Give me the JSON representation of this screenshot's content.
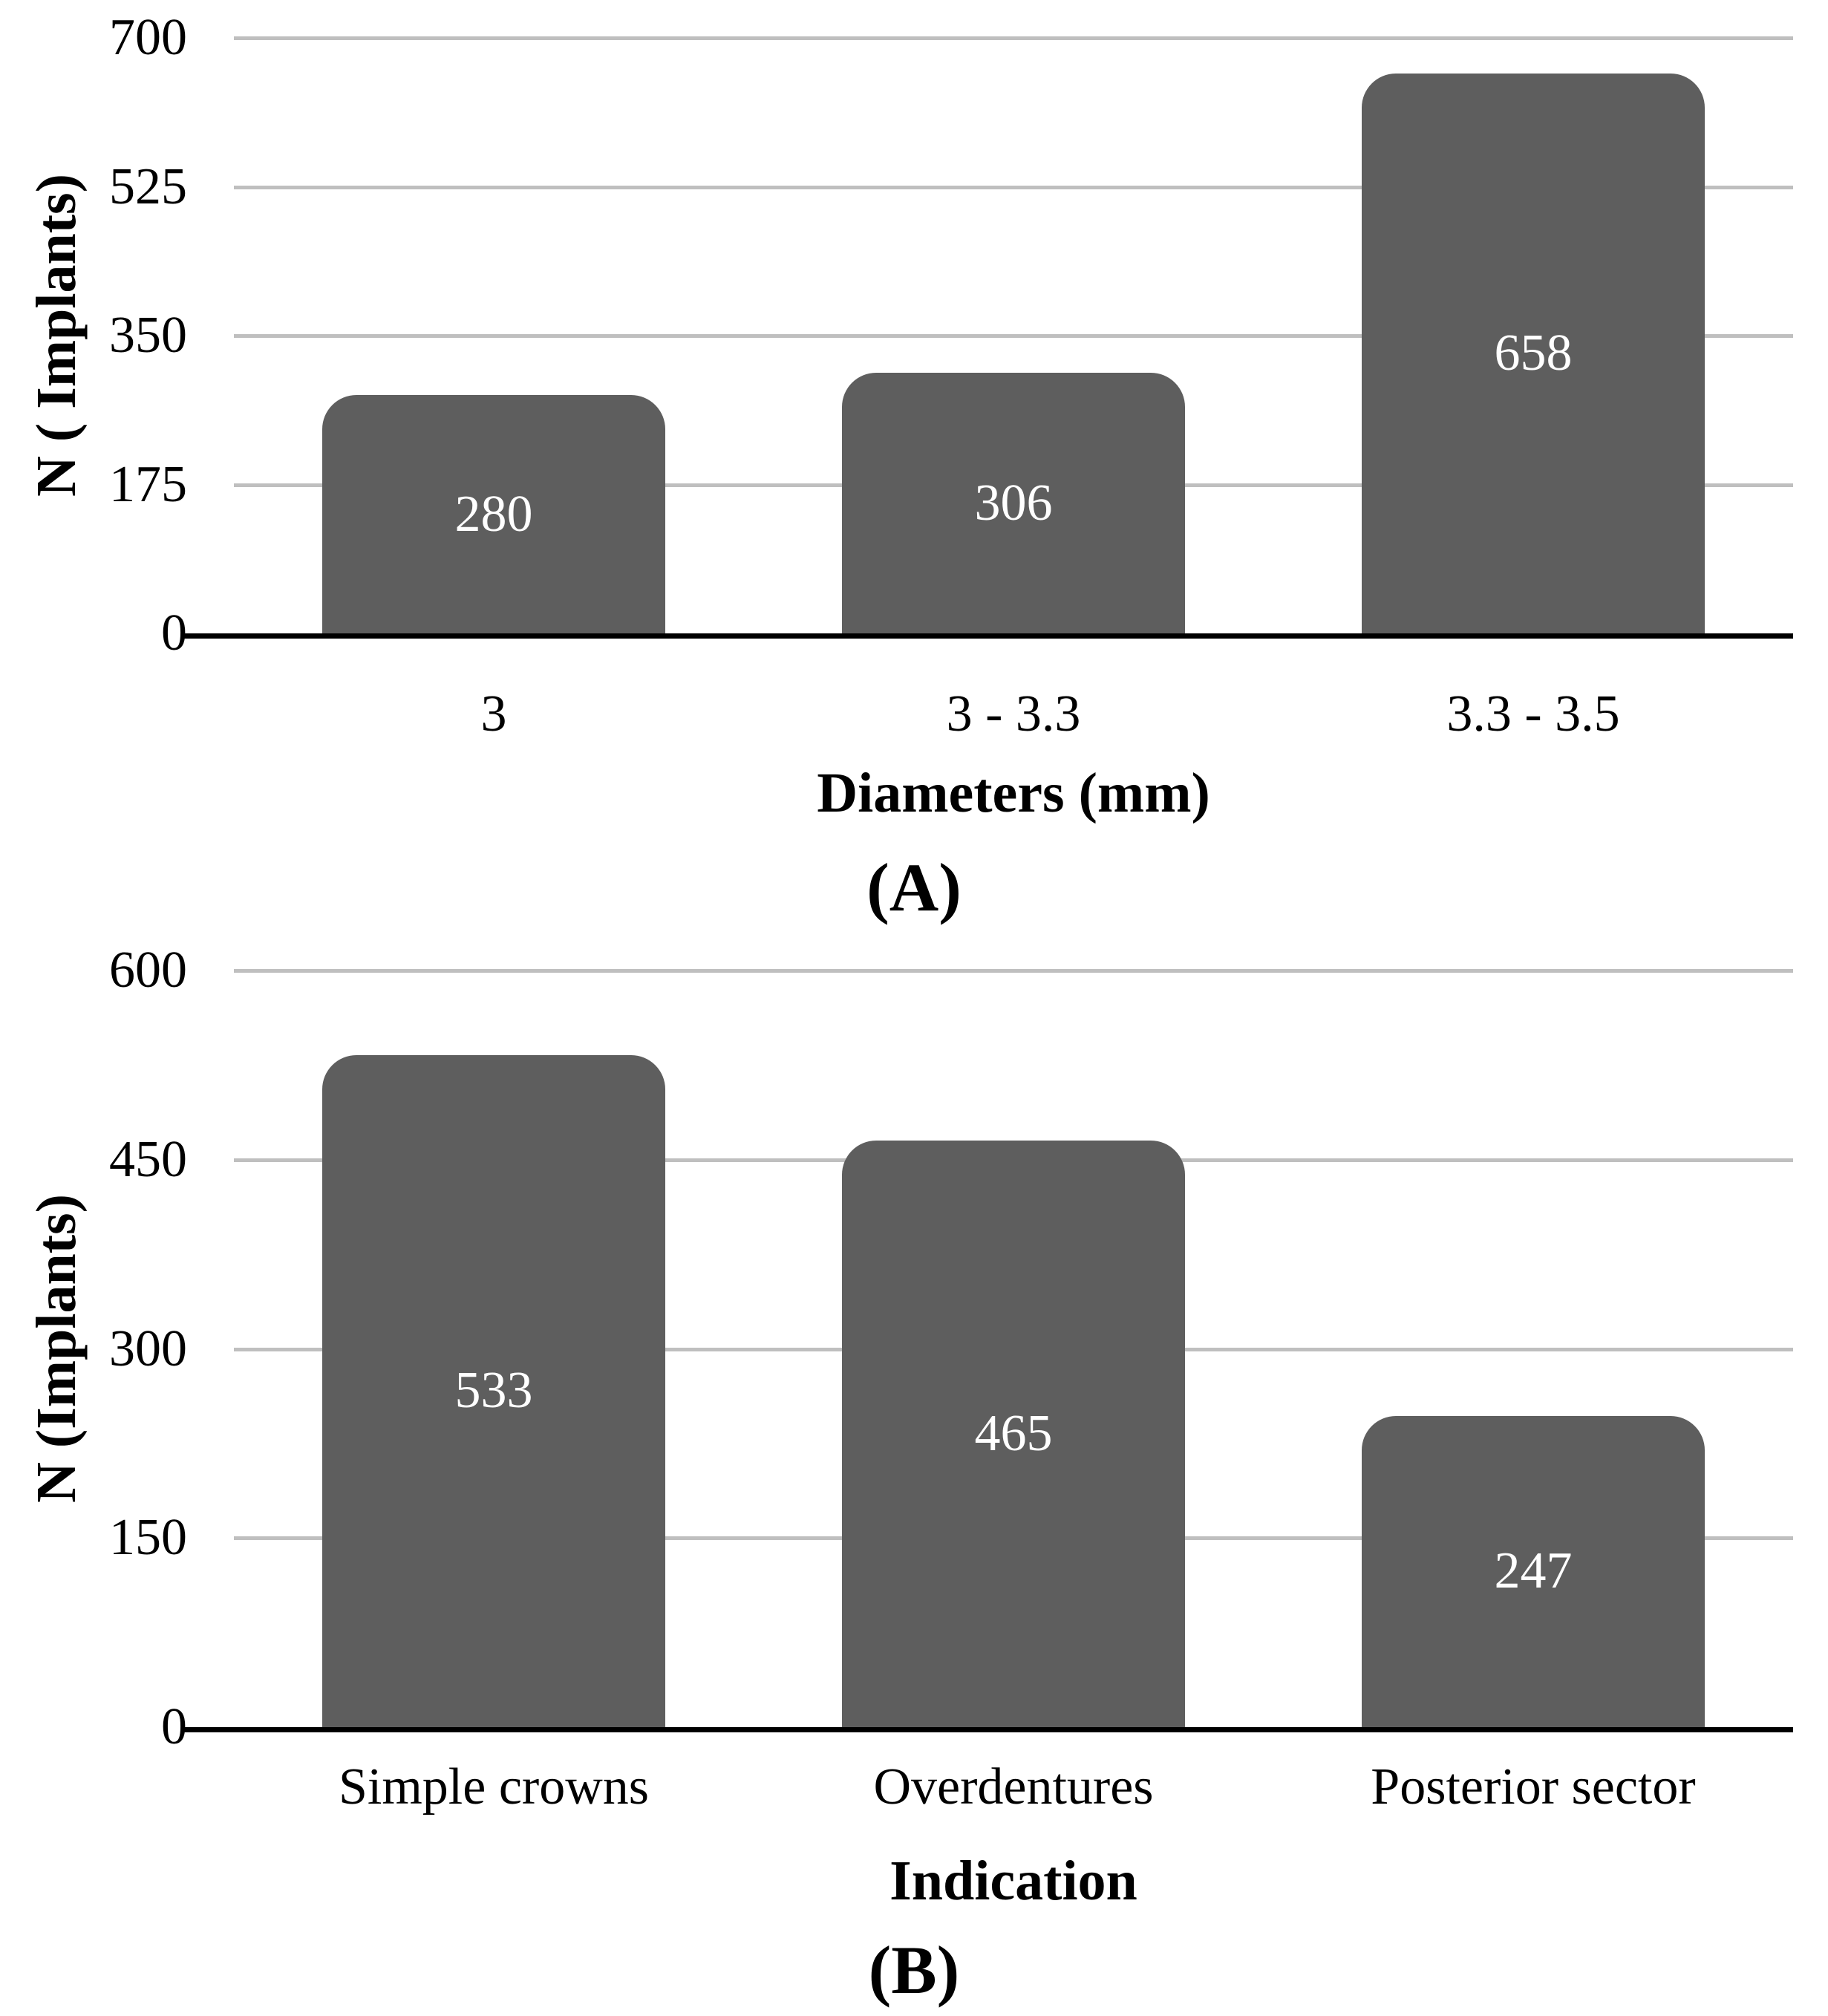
{
  "chart_data": [
    {
      "type": "bar",
      "panel_label": "(A)",
      "ylabel": "N ( Implants)",
      "xlabel": "Diameters (mm)",
      "categories": [
        "3",
        "3 - 3.3",
        "3.3 - 3.5"
      ],
      "values": [
        280,
        306,
        658
      ],
      "yticks": [
        0,
        175,
        350,
        525,
        700
      ],
      "ylim": [
        0,
        700
      ],
      "grid": true,
      "legend": false,
      "bar_color": "#5E5E5E",
      "value_label_color": "#FFFFFF",
      "gridline_color": "#BFBFBF",
      "axis_color": "#000000"
    },
    {
      "type": "bar",
      "panel_label": "(B)",
      "ylabel": "N (Implants)",
      "xlabel": "Indication",
      "categories": [
        "Simple crowns",
        "Overdentures",
        "Posterior sector"
      ],
      "values": [
        533,
        465,
        247
      ],
      "yticks": [
        0,
        150,
        300,
        450,
        600
      ],
      "ylim": [
        0,
        600
      ],
      "grid": true,
      "legend": false,
      "bar_color": "#5E5E5E",
      "value_label_color": "#FFFFFF",
      "gridline_color": "#BFBFBF",
      "axis_color": "#000000"
    }
  ]
}
